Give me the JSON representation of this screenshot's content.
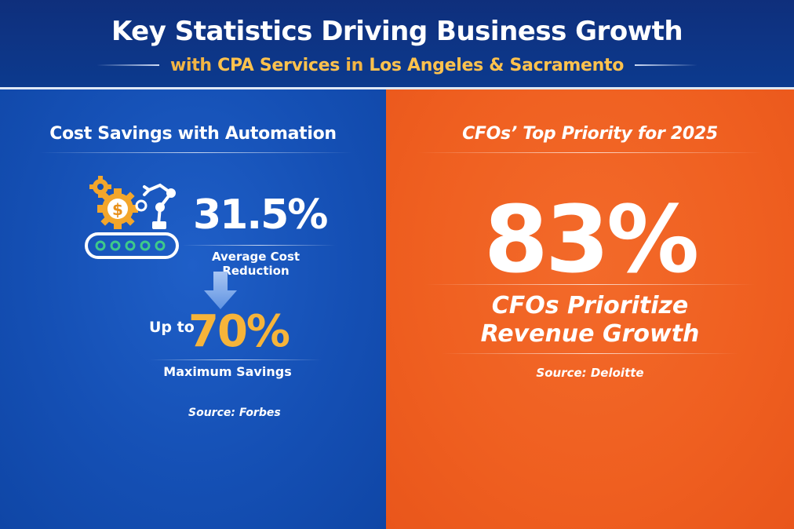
{
  "header": {
    "title": "Key Statistics Driving Business Growth",
    "subtitle_prefix": "with ",
    "subtitle_em1": "CPA Services",
    "subtitle_mid": " in ",
    "subtitle_em2": "Los Angeles & Sacramento"
  },
  "left_panel": {
    "title": "Cost Savings with Automation",
    "stat_value": "31.5%",
    "stat_label": "Average Cost Reduction",
    "upto_label": "Up to",
    "max_value": "70%",
    "max_label": "Maximum Savings",
    "source": "Source: Forbes",
    "icons": [
      "gear-icon",
      "dollar-gear-icon",
      "robotic-arm-icon",
      "conveyor-belt-icon",
      "down-arrow-icon"
    ]
  },
  "right_panel": {
    "title": "CFOs’ Top Priority for 2025",
    "stat_value": "83%",
    "text_line1": "CFOs Prioritize",
    "text_line2": "Revenue Growth",
    "source": "Source: Deloitte"
  },
  "colors": {
    "header_bg": "#0f2f7c",
    "left_bg": "#1550b5",
    "right_bg": "#ef5f20",
    "accent_gold": "#f6b43a",
    "text": "#ffffff"
  }
}
